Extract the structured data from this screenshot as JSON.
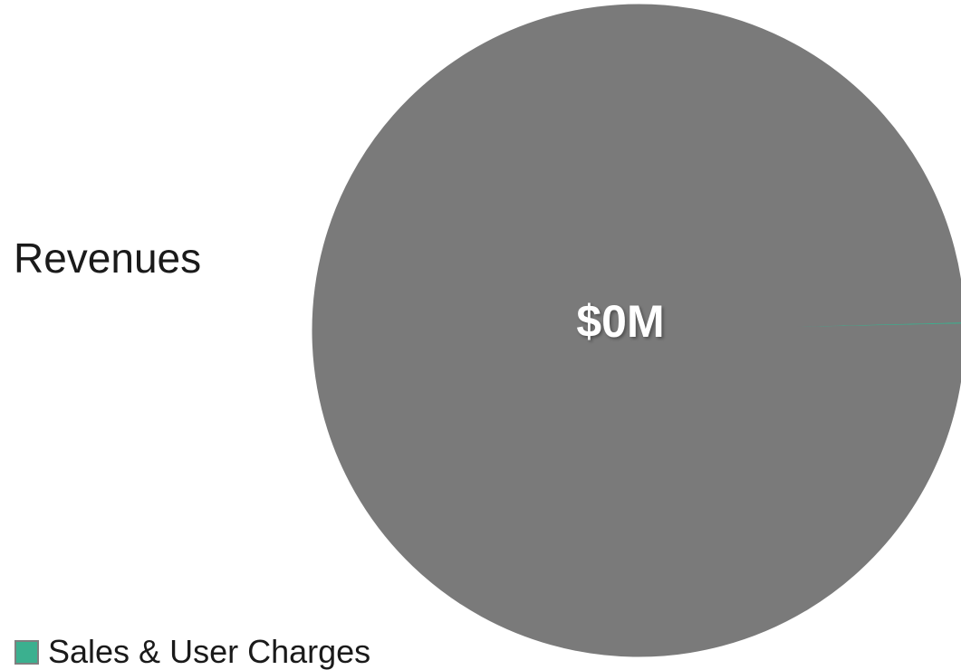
{
  "chart_data": {
    "type": "pie",
    "title": "Revenues",
    "slices": [
      {
        "name": "Sales & User Charges",
        "value": 0.1,
        "color": "#3bb08f"
      },
      {
        "name": "",
        "value": 99.9,
        "color": "#7a7a7a"
      }
    ],
    "data_label": "$0M",
    "legend": {
      "position": "bottom-left",
      "entries": [
        {
          "label": "Sales & User Charges",
          "color": "#3bb08f"
        }
      ]
    }
  }
}
